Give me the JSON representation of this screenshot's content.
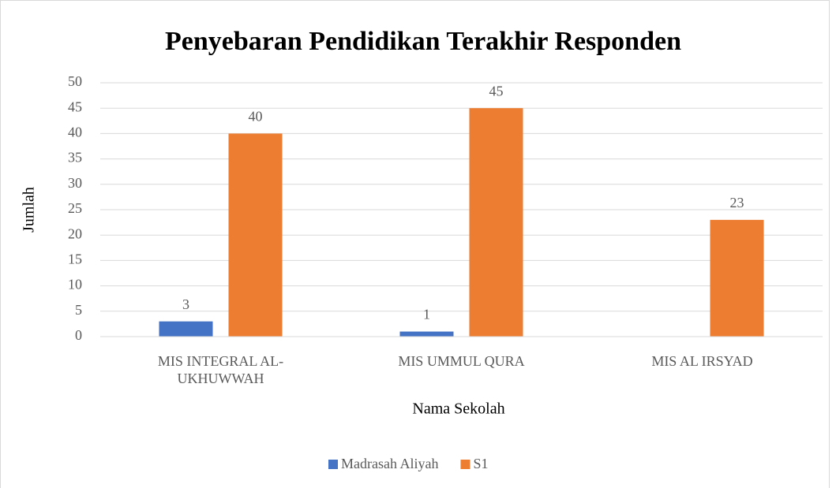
{
  "chart_data": {
    "type": "bar",
    "title": "Penyebaran Pendidikan Terakhir Responden",
    "x_label": "Nama Sekolah",
    "y_label": "Jumlah",
    "categories": [
      "MIS INTEGRAL AL-UKHUWWAH",
      "MIS UMMUL QURA",
      "MIS AL IRSYAD"
    ],
    "series": [
      {
        "name": "Madrasah Aliyah",
        "color": "#4472c4",
        "values": [
          3,
          1,
          null
        ]
      },
      {
        "name": "S1",
        "color": "#ed7d31",
        "values": [
          40,
          45,
          23
        ]
      }
    ],
    "ylim": [
      0,
      50
    ],
    "yticks": [
      0,
      5,
      10,
      15,
      20,
      25,
      30,
      35,
      40,
      45,
      50
    ],
    "grid": true,
    "legend": "bottom"
  }
}
